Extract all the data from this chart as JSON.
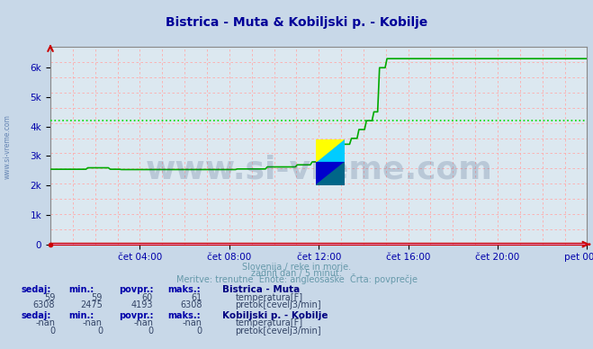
{
  "title": "Bistrica - Muta & Kobiljski p. - Kobilje",
  "title_color": "#000099",
  "bg_color": "#c8d8e8",
  "plot_bg_color": "#dce8f0",
  "xlabel_ticks": [
    "čet 04:00",
    "čet 08:00",
    "čet 12:00",
    "čet 16:00",
    "čet 20:00",
    "pet 00:00"
  ],
  "xlabel_tick_positions": [
    0.1667,
    0.3333,
    0.5,
    0.6667,
    0.8333,
    1.0
  ],
  "ylim": [
    0,
    6700
  ],
  "yticks": [
    0,
    1000,
    2000,
    3000,
    4000,
    5000,
    6000
  ],
  "ytick_labels": [
    "0",
    "1k",
    "2k",
    "3k",
    "4k",
    "5k",
    "6k"
  ],
  "subtitle_line1": "Slovenija / reke in morje.",
  "subtitle_line2": "zadnji dan / 5 minut.",
  "subtitle_line3": "Meritve: trenutne  Enote: angleosaške  Črta: povprečje",
  "subtitle_color": "#6699aa",
  "watermark": "www.si-vreme.com",
  "watermark_color": "#1a3a6a",
  "watermark_alpha": 0.18,
  "avg_line_value": 4193,
  "avg_line_color": "#00dd00",
  "temp_line_color": "#cc0000",
  "flow_line_color": "#00aa00",
  "legend_info": {
    "station1": "Bistrica - Muta",
    "station1_sedaj": 59,
    "station1_min": 59,
    "station1_povpr": 60,
    "station1_maks": 61,
    "station1_temp_color": "#dd0000",
    "station1_flow_sedaj": 6308,
    "station1_flow_min": 2475,
    "station1_flow_povpr": 4193,
    "station1_flow_maks": 6308,
    "station1_flow_color": "#00cc00",
    "station2": "Kobiljski p. - Kobilje",
    "station2_sedaj": "-nan",
    "station2_min": "-nan",
    "station2_povpr": "-nan",
    "station2_maks": "-nan",
    "station2_temp_color": "#ffff00",
    "station2_flow_sedaj": "0",
    "station2_flow_min": "0",
    "station2_flow_povpr": "0",
    "station2_flow_maks": "0",
    "station2_flow_color": "#ff00ff"
  },
  "table_label_color": "#0000aa",
  "table_value_color": "#334466"
}
